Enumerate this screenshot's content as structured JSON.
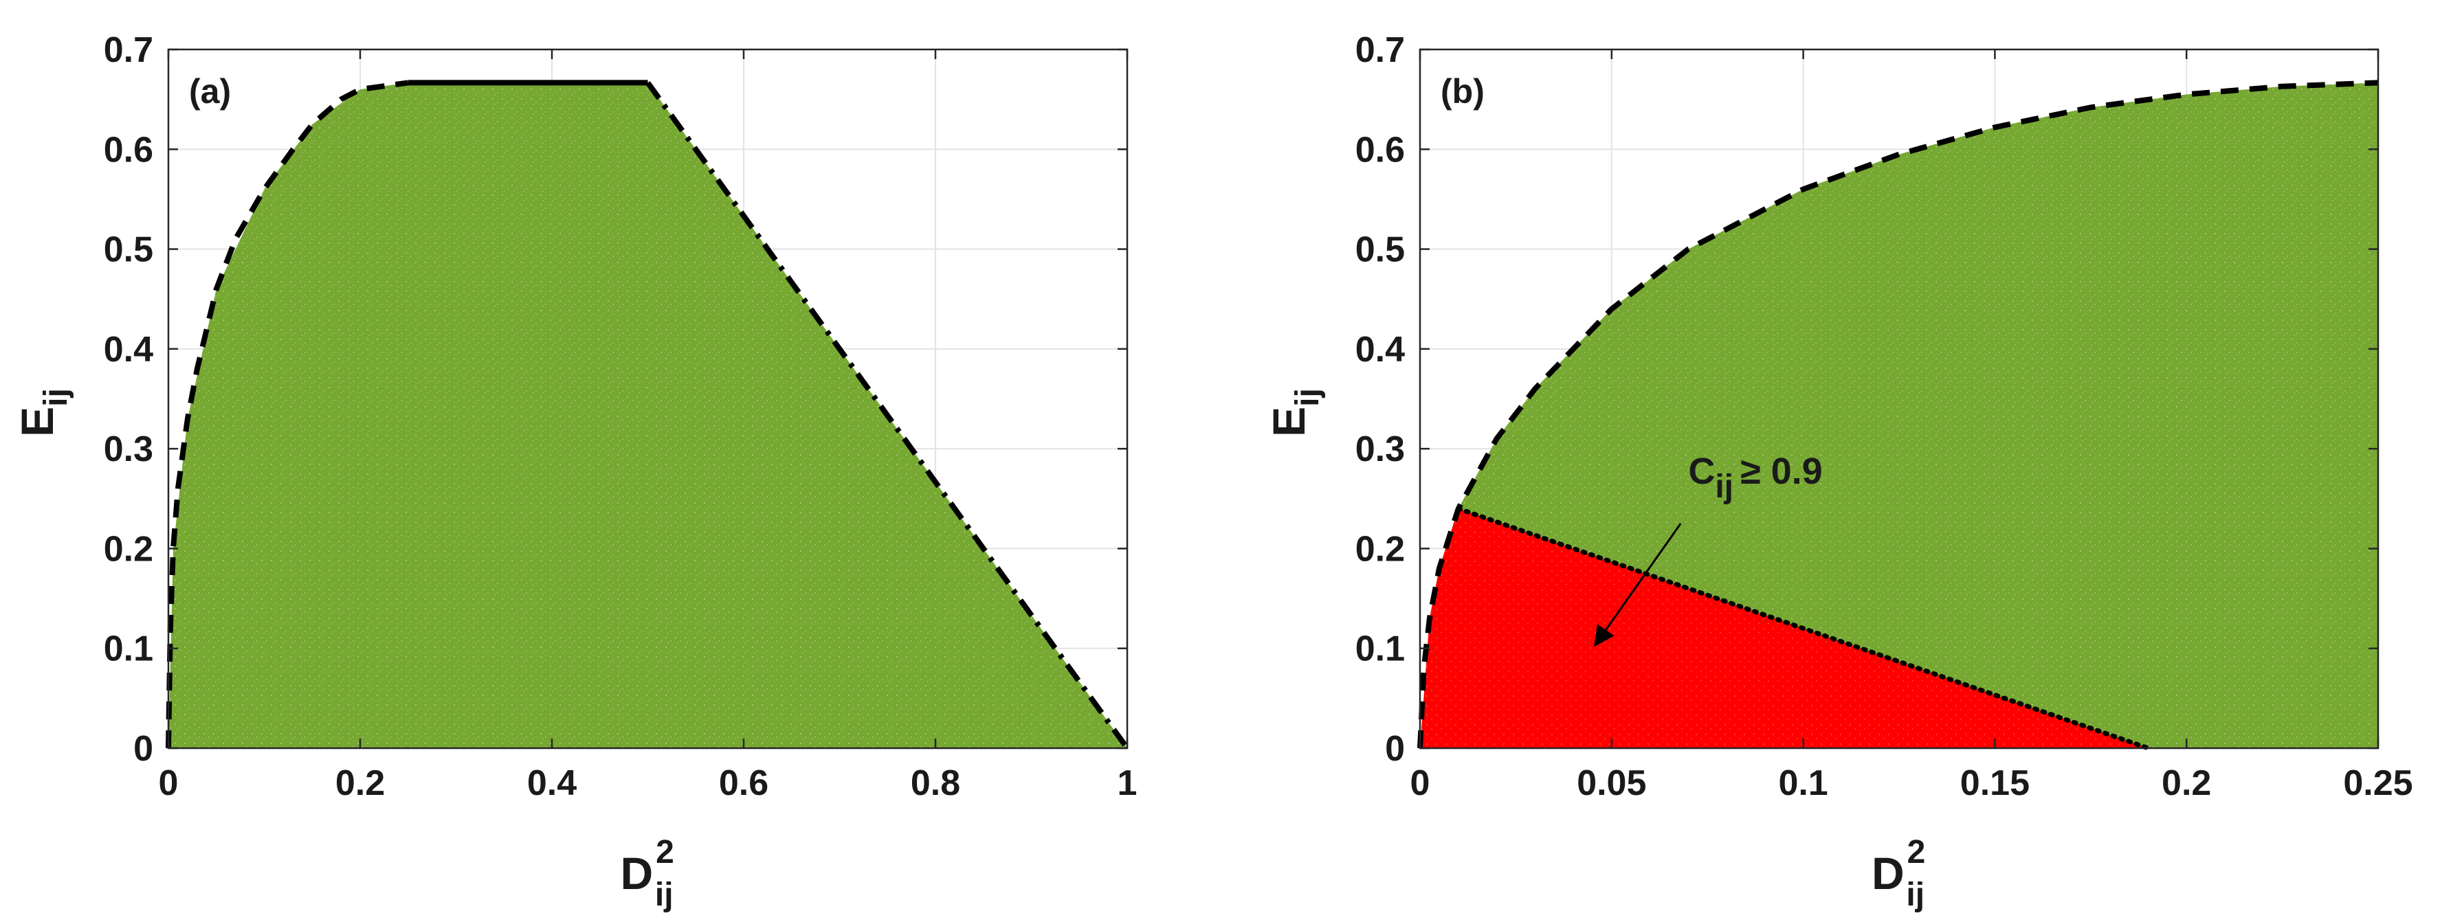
{
  "colors": {
    "region_green": "#76a832",
    "region_red": "#ff0000",
    "boundary": "#000000",
    "grid": "#e3e3e3"
  },
  "chart_data": [
    {
      "type": "scatter",
      "panel_label": "(a)",
      "xlabel": {
        "main": "D",
        "sub": "ij",
        "sup": "2"
      },
      "ylabel": {
        "main": "E",
        "sub": "ij"
      },
      "xlim": [
        0,
        1
      ],
      "ylim": [
        0,
        0.7
      ],
      "xticks": [
        0,
        0.2,
        0.4,
        0.6,
        0.8,
        1
      ],
      "xtick_labels": [
        "0",
        "0.2",
        "0.4",
        "0.6",
        "0.8",
        "1"
      ],
      "yticks": [
        0,
        0.1,
        0.2,
        0.3,
        0.4,
        0.5,
        0.6,
        0.7
      ],
      "ytick_labels": [
        "0",
        "0.1",
        "0.2",
        "0.3",
        "0.4",
        "0.5",
        "0.6",
        "0.7"
      ],
      "grid": true,
      "regions": [
        {
          "color": "#76a832",
          "points": [
            [
              0,
              0
            ],
            [
              0.005,
              0.2
            ],
            [
              0.02,
              0.33
            ],
            [
              0.05,
              0.46
            ],
            [
              0.1,
              0.56
            ],
            [
              0.15,
              0.625
            ],
            [
              0.2,
              0.66
            ],
            [
              0.25,
              0.6667
            ],
            [
              0.5,
              0.6667
            ],
            [
              1,
              0
            ],
            [
              0,
              0
            ]
          ]
        }
      ],
      "boundaries": [
        {
          "style": "dashed",
          "points": [
            [
              0,
              0
            ],
            [
              0.002,
              0.12
            ],
            [
              0.005,
              0.2
            ],
            [
              0.01,
              0.26
            ],
            [
              0.02,
              0.33
            ],
            [
              0.03,
              0.38
            ],
            [
              0.05,
              0.46
            ],
            [
              0.07,
              0.51
            ],
            [
              0.1,
              0.56
            ],
            [
              0.13,
              0.6
            ],
            [
              0.15,
              0.625
            ],
            [
              0.18,
              0.65
            ],
            [
              0.2,
              0.66
            ],
            [
              0.25,
              0.6667
            ]
          ]
        },
        {
          "style": "solid",
          "points": [
            [
              0.25,
              0.6667
            ],
            [
              0.5,
              0.6667
            ]
          ]
        },
        {
          "style": "dashdot",
          "points": [
            [
              0.5,
              0.6667
            ],
            [
              1,
              0
            ]
          ]
        }
      ]
    },
    {
      "type": "scatter",
      "panel_label": "(b)",
      "xlabel": {
        "main": "D",
        "sub": "ij",
        "sup": "2"
      },
      "ylabel": {
        "main": "E",
        "sub": "ij"
      },
      "xlim": [
        0,
        0.25
      ],
      "ylim": [
        0,
        0.7
      ],
      "xticks": [
        0,
        0.05,
        0.1,
        0.15,
        0.2,
        0.25
      ],
      "xtick_labels": [
        "0",
        "0.05",
        "0.1",
        "0.15",
        "0.2",
        "0.25"
      ],
      "yticks": [
        0,
        0.1,
        0.2,
        0.3,
        0.4,
        0.5,
        0.6,
        0.7
      ],
      "ytick_labels": [
        "0",
        "0.1",
        "0.2",
        "0.3",
        "0.4",
        "0.5",
        "0.6",
        "0.7"
      ],
      "grid": true,
      "regions": [
        {
          "color": "#76a832",
          "points": [
            [
              0,
              0
            ],
            [
              0.0025,
              0.13
            ],
            [
              0.005,
              0.18
            ],
            [
              0.01,
              0.24
            ],
            [
              0.02,
              0.31
            ],
            [
              0.03,
              0.36
            ],
            [
              0.05,
              0.44
            ],
            [
              0.07,
              0.5
            ],
            [
              0.1,
              0.56
            ],
            [
              0.125,
              0.595
            ],
            [
              0.15,
              0.622
            ],
            [
              0.175,
              0.642
            ],
            [
              0.2,
              0.655
            ],
            [
              0.225,
              0.663
            ],
            [
              0.25,
              0.6667
            ],
            [
              0.25,
              0
            ],
            [
              0,
              0
            ]
          ]
        },
        {
          "color": "#ff0000",
          "points": [
            [
              0,
              0
            ],
            [
              0.0025,
              0.13
            ],
            [
              0.005,
              0.18
            ],
            [
              0.01,
              0.24
            ],
            [
              0.19,
              0
            ],
            [
              0,
              0
            ]
          ]
        }
      ],
      "boundaries": [
        {
          "style": "dashed",
          "points": [
            [
              0,
              0
            ],
            [
              0.001,
              0.08
            ],
            [
              0.0025,
              0.13
            ],
            [
              0.005,
              0.18
            ],
            [
              0.01,
              0.24
            ],
            [
              0.02,
              0.31
            ],
            [
              0.03,
              0.36
            ],
            [
              0.05,
              0.44
            ],
            [
              0.07,
              0.5
            ],
            [
              0.1,
              0.56
            ],
            [
              0.125,
              0.595
            ],
            [
              0.15,
              0.622
            ],
            [
              0.175,
              0.642
            ],
            [
              0.2,
              0.655
            ],
            [
              0.225,
              0.663
            ],
            [
              0.25,
              0.6667
            ]
          ]
        },
        {
          "style": "dotted",
          "points": [
            [
              0.01,
              0.24
            ],
            [
              0.19,
              0
            ]
          ]
        }
      ],
      "annotation": {
        "text_main": "C",
        "text_sub": "ij",
        "text_rest": "≥ 0.9",
        "text_at": [
          0.07,
          0.265
        ],
        "arrow_from": [
          0.068,
          0.225
        ],
        "arrow_to": [
          0.046,
          0.105
        ]
      }
    }
  ]
}
